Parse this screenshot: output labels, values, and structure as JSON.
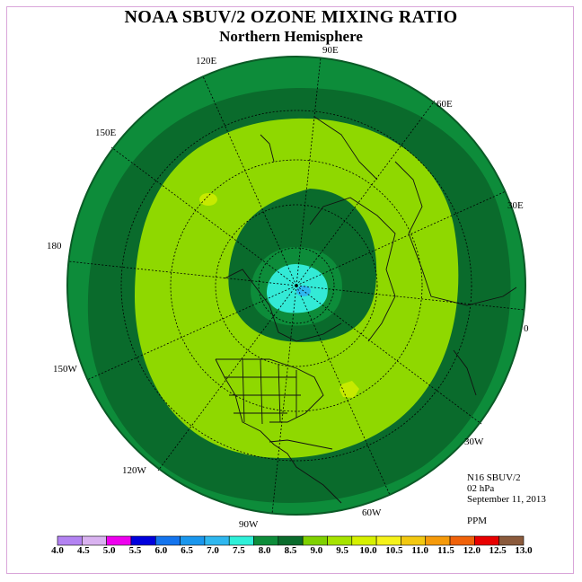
{
  "title": "NOAA SBUV/2 OZONE MIXING RATIO",
  "subtitle": "Northern Hemisphere",
  "longitude_labels": {
    "e90": "90E",
    "e60": "60E",
    "e30": "30E",
    "zero": "0",
    "e120": "120E",
    "e150": "150E",
    "deg180": "180",
    "w150": "150W",
    "w120": "120W",
    "w90": "90W",
    "w60": "60W",
    "w30": "30W"
  },
  "info": {
    "instrument": "N16 SBUV/2",
    "level": "02 hPa",
    "date": "September 11, 2013",
    "units": "PPM"
  },
  "colorbar": {
    "ticks": [
      "4.0",
      "4.5",
      "5.0",
      "5.5",
      "6.0",
      "6.5",
      "7.0",
      "7.5",
      "8.0",
      "8.5",
      "9.0",
      "9.5",
      "10.0",
      "10.5",
      "11.0",
      "11.5",
      "12.0",
      "12.5",
      "13.0"
    ],
    "colors": [
      "#b383f2",
      "#d9b2f0",
      "#ee00ee",
      "#0000dd",
      "#1474ee",
      "#1a97ee",
      "#2fb7ef",
      "#2ff0d9",
      "#0d8c3a",
      "#0a6b2c",
      "#7fd100",
      "#a6e300",
      "#d6f000",
      "#f5f21a",
      "#f2c811",
      "#f59a0a",
      "#f0620a",
      "#e80000",
      "#8b5a3c"
    ]
  },
  "map_colors": {
    "outer": "#0d8c3a",
    "dark": "#0a6b2c",
    "light": "#8fd800",
    "lighter": "#a6e300",
    "polar_ring_dark": "#0a6b2c",
    "polar_ring": "#0d8c3a",
    "polar_core": "#33ead6",
    "polar_center": "#2fb7ef"
  }
}
